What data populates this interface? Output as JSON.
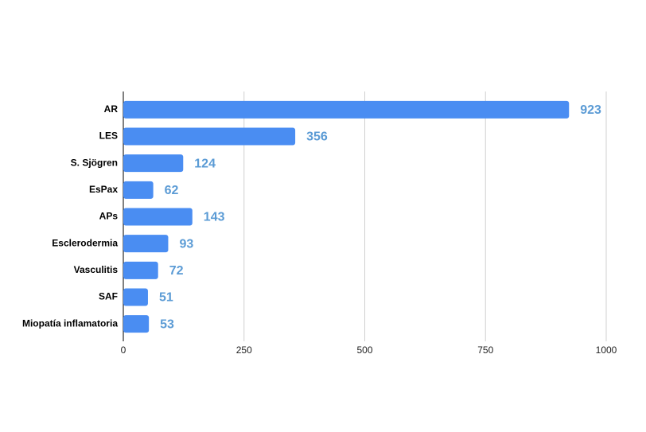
{
  "chart_data": {
    "type": "bar",
    "orientation": "horizontal",
    "categories": [
      "AR",
      "LES",
      "S. Sjögren",
      "EsPax",
      "APs",
      "Esclerodermia",
      "Vasculitis",
      "SAF",
      "Miopatía inflamatoria"
    ],
    "values": [
      923,
      356,
      124,
      62,
      143,
      93,
      72,
      51,
      53
    ],
    "color": "#4a8df2",
    "label_color": "#5b9bd5",
    "xlim": [
      0,
      1000
    ],
    "xticks": [
      0,
      250,
      500,
      750,
      1000
    ],
    "grid": true
  }
}
